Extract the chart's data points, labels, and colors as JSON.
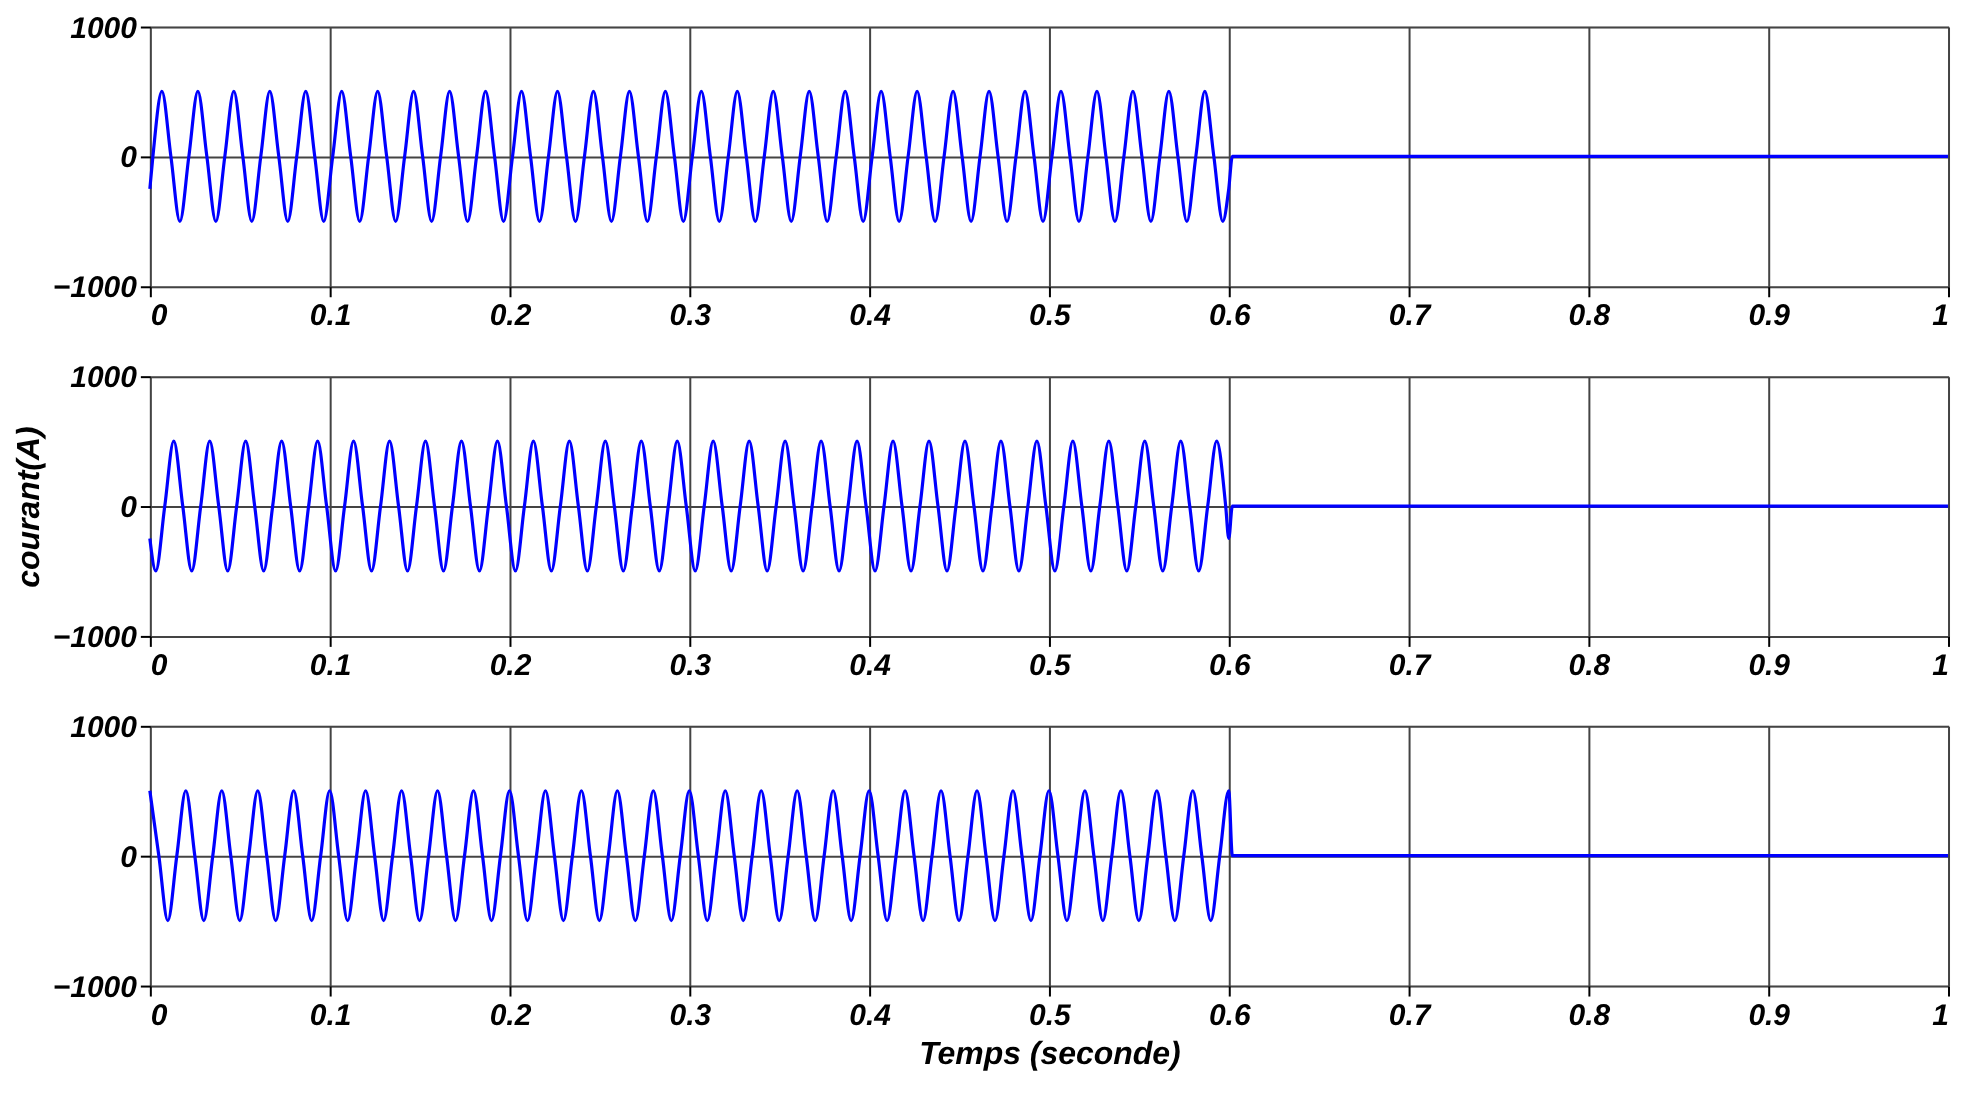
{
  "chart_data": [
    {
      "type": "line",
      "xlim": [
        0,
        1
      ],
      "ylim": [
        -1000,
        1000
      ],
      "xticks": [
        0,
        0.1,
        0.2,
        0.3,
        0.4,
        0.5,
        0.6,
        0.7,
        0.8,
        0.9,
        1
      ],
      "yticks": [
        -1000,
        0,
        1000
      ],
      "grid": true,
      "marker": "none",
      "line_style": "solid",
      "series": [
        {
          "color": "#0000ff",
          "x": [
            0,
            0.0017,
            0.0067,
            0.0117,
            0.0167,
            0.0217,
            0.0267,
            0.0317,
            0.0367,
            0.0417,
            0.0467,
            0.0517,
            0.0567,
            0.0617,
            0.0667,
            0.0717,
            0.0767,
            0.0817,
            0.0867,
            0.0917,
            0.0967,
            0.1017,
            0.1067,
            0.1117,
            0.1167,
            0.1217,
            0.1267,
            0.1317,
            0.1367,
            0.1417,
            0.1467,
            0.1517,
            0.1567,
            0.1617,
            0.1667,
            0.1717,
            0.1767,
            0.1817,
            0.1867,
            0.1917,
            0.1967,
            0.2017,
            0.2067,
            0.2117,
            0.2167,
            0.2217,
            0.2267,
            0.2317,
            0.2367,
            0.2417,
            0.2467,
            0.2517,
            0.2567,
            0.2617,
            0.2667,
            0.2717,
            0.2767,
            0.2817,
            0.2867,
            0.2917,
            0.2967,
            0.3017,
            0.3067,
            0.3117,
            0.3167,
            0.3217,
            0.3267,
            0.3317,
            0.3367,
            0.3417,
            0.3467,
            0.3517,
            0.3567,
            0.3617,
            0.3667,
            0.3717,
            0.3767,
            0.3817,
            0.3867,
            0.3917,
            0.3967,
            0.4017,
            0.4067,
            0.4117,
            0.4167,
            0.4217,
            0.4267,
            0.4317,
            0.4367,
            0.4417,
            0.4467,
            0.4517,
            0.4567,
            0.4617,
            0.4667,
            0.4717,
            0.4767,
            0.4817,
            0.4867,
            0.4917,
            0.4967,
            0.5017,
            0.5067,
            0.5117,
            0.5167,
            0.5217,
            0.5267,
            0.5317,
            0.5367,
            0.5417,
            0.5467,
            0.5517,
            0.5567,
            0.5617,
            0.5667,
            0.5717,
            0.5767,
            0.5817,
            0.5867,
            0.5917,
            0.5967,
            0.6,
            0.602,
            1
          ],
          "values": [
            -250,
            0,
            500,
            0,
            -500,
            0,
            500,
            0,
            -500,
            0,
            500,
            0,
            -500,
            0,
            500,
            0,
            -500,
            0,
            500,
            0,
            -500,
            0,
            500,
            0,
            -500,
            0,
            500,
            0,
            -500,
            0,
            500,
            0,
            -500,
            0,
            500,
            0,
            -500,
            0,
            500,
            0,
            -500,
            0,
            500,
            0,
            -500,
            0,
            500,
            0,
            -500,
            0,
            500,
            0,
            -500,
            0,
            500,
            0,
            -500,
            0,
            500,
            0,
            -500,
            0,
            500,
            0,
            -500,
            0,
            500,
            0,
            -500,
            0,
            500,
            0,
            -500,
            0,
            500,
            0,
            -500,
            0,
            500,
            0,
            -500,
            0,
            500,
            0,
            -500,
            0,
            500,
            0,
            -500,
            0,
            500,
            0,
            -500,
            0,
            500,
            0,
            -500,
            0,
            500,
            0,
            -500,
            0,
            500,
            0,
            -500,
            0,
            500,
            0,
            -500,
            0,
            500,
            0,
            -500,
            0,
            500,
            0,
            -500,
            0,
            500,
            0,
            -500,
            -250,
            0,
            0
          ]
        }
      ]
    },
    {
      "type": "line",
      "ylabel": "courant(A)",
      "xlim": [
        0,
        1
      ],
      "ylim": [
        -1000,
        1000
      ],
      "xticks": [
        0,
        0.1,
        0.2,
        0.3,
        0.4,
        0.5,
        0.6,
        0.7,
        0.8,
        0.9,
        1
      ],
      "yticks": [
        -1000,
        0,
        1000
      ],
      "grid": true,
      "marker": "none",
      "line_style": "solid",
      "series": [
        {
          "color": "#0000ff",
          "x": [
            0,
            0.0033,
            0.0083,
            0.0133,
            0.0183,
            0.0233,
            0.0283,
            0.0333,
            0.0383,
            0.0433,
            0.0483,
            0.0533,
            0.0583,
            0.0633,
            0.0683,
            0.0733,
            0.0783,
            0.0833,
            0.0883,
            0.0933,
            0.0983,
            0.1033,
            0.1083,
            0.1133,
            0.1183,
            0.1233,
            0.1283,
            0.1333,
            0.1383,
            0.1433,
            0.1483,
            0.1533,
            0.1583,
            0.1633,
            0.1683,
            0.1733,
            0.1783,
            0.1833,
            0.1883,
            0.1933,
            0.1983,
            0.2033,
            0.2083,
            0.2133,
            0.2183,
            0.2233,
            0.2283,
            0.2333,
            0.2383,
            0.2433,
            0.2483,
            0.2533,
            0.2583,
            0.2633,
            0.2683,
            0.2733,
            0.2783,
            0.2833,
            0.2883,
            0.2933,
            0.2983,
            0.3033,
            0.3083,
            0.3133,
            0.3183,
            0.3233,
            0.3283,
            0.3333,
            0.3383,
            0.3433,
            0.3483,
            0.3533,
            0.3583,
            0.3633,
            0.3683,
            0.3733,
            0.3783,
            0.3833,
            0.3883,
            0.3933,
            0.3983,
            0.4033,
            0.4083,
            0.4133,
            0.4183,
            0.4233,
            0.4283,
            0.4333,
            0.4383,
            0.4433,
            0.4483,
            0.4533,
            0.4583,
            0.4633,
            0.4683,
            0.4733,
            0.4783,
            0.4833,
            0.4883,
            0.4933,
            0.4983,
            0.5033,
            0.5083,
            0.5133,
            0.5183,
            0.5233,
            0.5283,
            0.5333,
            0.5383,
            0.5433,
            0.5483,
            0.5533,
            0.5583,
            0.5633,
            0.5683,
            0.5733,
            0.5783,
            0.5833,
            0.5883,
            0.5933,
            0.5983,
            0.6,
            0.602,
            1
          ],
          "values": [
            -250,
            -500,
            0,
            500,
            0,
            -500,
            0,
            500,
            0,
            -500,
            0,
            500,
            0,
            -500,
            0,
            500,
            0,
            -500,
            0,
            500,
            0,
            -500,
            0,
            500,
            0,
            -500,
            0,
            500,
            0,
            -500,
            0,
            500,
            0,
            -500,
            0,
            500,
            0,
            -500,
            0,
            500,
            0,
            -500,
            0,
            500,
            0,
            -500,
            0,
            500,
            0,
            -500,
            0,
            500,
            0,
            -500,
            0,
            500,
            0,
            -500,
            0,
            500,
            0,
            -500,
            0,
            500,
            0,
            -500,
            0,
            500,
            0,
            -500,
            0,
            500,
            0,
            -500,
            0,
            500,
            0,
            -500,
            0,
            500,
            0,
            -500,
            0,
            500,
            0,
            -500,
            0,
            500,
            0,
            -500,
            0,
            500,
            0,
            -500,
            0,
            500,
            0,
            -500,
            0,
            500,
            0,
            -500,
            0,
            500,
            0,
            -500,
            0,
            500,
            0,
            -500,
            0,
            500,
            0,
            -500,
            0,
            500,
            0,
            -500,
            0,
            500,
            0,
            -250,
            0,
            0
          ]
        }
      ]
    },
    {
      "type": "line",
      "xlabel": "Temps (seconde)",
      "xlim": [
        0,
        1
      ],
      "ylim": [
        -1000,
        1000
      ],
      "xticks": [
        0,
        0.1,
        0.2,
        0.3,
        0.4,
        0.5,
        0.6,
        0.7,
        0.8,
        0.9,
        1
      ],
      "yticks": [
        -1000,
        0,
        1000
      ],
      "grid": true,
      "marker": "none",
      "line_style": "solid",
      "series": [
        {
          "color": "#0000ff",
          "x": [
            0,
            0.005,
            0.01,
            0.015,
            0.02,
            0.025,
            0.03,
            0.035,
            0.04,
            0.045,
            0.05,
            0.055,
            0.06,
            0.065,
            0.07,
            0.075,
            0.08,
            0.085,
            0.09,
            0.095,
            0.1,
            0.105,
            0.11,
            0.115,
            0.12,
            0.125,
            0.13,
            0.135,
            0.14,
            0.145,
            0.15,
            0.155,
            0.16,
            0.165,
            0.17,
            0.175,
            0.18,
            0.185,
            0.19,
            0.195,
            0.2,
            0.205,
            0.21,
            0.215,
            0.22,
            0.225,
            0.23,
            0.235,
            0.24,
            0.245,
            0.25,
            0.255,
            0.26,
            0.265,
            0.27,
            0.275,
            0.28,
            0.285,
            0.29,
            0.295,
            0.3,
            0.305,
            0.31,
            0.315,
            0.32,
            0.325,
            0.33,
            0.335,
            0.34,
            0.345,
            0.35,
            0.355,
            0.36,
            0.365,
            0.37,
            0.375,
            0.38,
            0.385,
            0.39,
            0.395,
            0.4,
            0.405,
            0.41,
            0.415,
            0.42,
            0.425,
            0.43,
            0.435,
            0.44,
            0.445,
            0.45,
            0.455,
            0.46,
            0.465,
            0.47,
            0.475,
            0.48,
            0.485,
            0.49,
            0.495,
            0.5,
            0.505,
            0.51,
            0.515,
            0.52,
            0.525,
            0.53,
            0.535,
            0.54,
            0.545,
            0.55,
            0.555,
            0.56,
            0.565,
            0.57,
            0.575,
            0.58,
            0.585,
            0.59,
            0.595,
            0.6,
            0.602,
            1
          ],
          "values": [
            500,
            0,
            -500,
            0,
            500,
            0,
            -500,
            0,
            500,
            0,
            -500,
            0,
            500,
            0,
            -500,
            0,
            500,
            0,
            -500,
            0,
            500,
            0,
            -500,
            0,
            500,
            0,
            -500,
            0,
            500,
            0,
            -500,
            0,
            500,
            0,
            -500,
            0,
            500,
            0,
            -500,
            0,
            500,
            0,
            -500,
            0,
            500,
            0,
            -500,
            0,
            500,
            0,
            -500,
            0,
            500,
            0,
            -500,
            0,
            500,
            0,
            -500,
            0,
            500,
            0,
            -500,
            0,
            500,
            0,
            -500,
            0,
            500,
            0,
            -500,
            0,
            500,
            0,
            -500,
            0,
            500,
            0,
            -500,
            0,
            500,
            0,
            -500,
            0,
            500,
            0,
            -500,
            0,
            500,
            0,
            -500,
            0,
            500,
            0,
            -500,
            0,
            500,
            0,
            -500,
            0,
            500,
            0,
            -500,
            0,
            500,
            0,
            -500,
            0,
            500,
            0,
            -500,
            0,
            500,
            0,
            -500,
            0,
            500,
            0,
            -500,
            0,
            500,
            0,
            0
          ]
        }
      ]
    }
  ]
}
